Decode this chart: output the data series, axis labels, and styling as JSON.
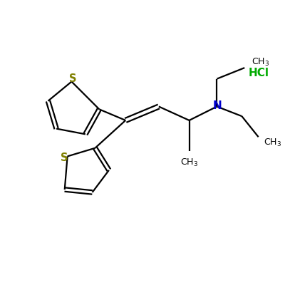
{
  "background_color": "#ffffff",
  "bond_color": "#000000",
  "sulfur_color": "#808000",
  "nitrogen_color": "#0000cc",
  "hcl_color": "#00aa00",
  "line_width": 1.6,
  "figsize": [
    4.0,
    4.0
  ],
  "dpi": 100,
  "xlim": [
    0,
    10
  ],
  "ylim": [
    0,
    10
  ]
}
